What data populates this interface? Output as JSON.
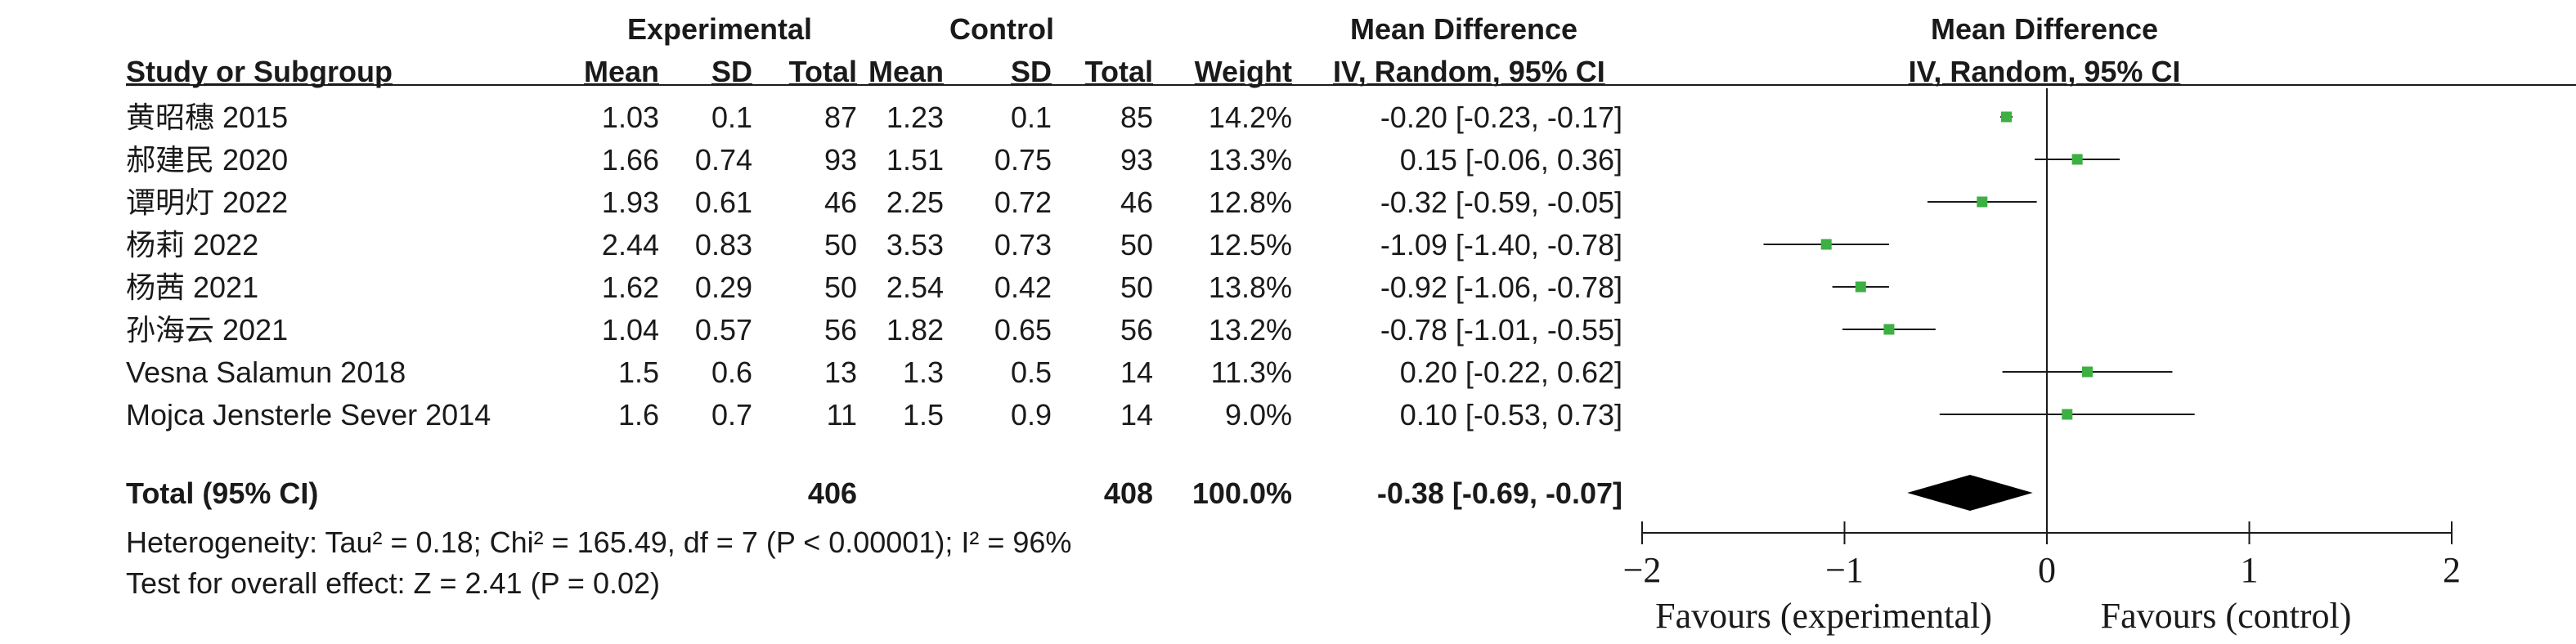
{
  "header": {
    "experimental": "Experimental",
    "control": "Control",
    "md_left": "Mean Difference",
    "md_right": "Mean Difference",
    "study": "Study or Subgroup",
    "mean1": "Mean",
    "sd1": "SD",
    "total1": "Total",
    "mean2": "Mean",
    "sd2": "SD",
    "total2": "Total",
    "weight": "Weight",
    "ci_left": "IV, Random, 95% CI",
    "ci_right": "IV, Random, 95% CI"
  },
  "rows": [
    {
      "study": "黄昭穗 2015",
      "mean1": "1.03",
      "sd1": "0.1",
      "total1": "87",
      "mean2": "1.23",
      "sd2": "0.1",
      "total2": "85",
      "weight": "14.2%",
      "ci": "-0.20 [-0.23, -0.17]"
    },
    {
      "study": "郝建民 2020",
      "mean1": "1.66",
      "sd1": "0.74",
      "total1": "93",
      "mean2": "1.51",
      "sd2": "0.75",
      "total2": "93",
      "weight": "13.3%",
      "ci": "0.15 [-0.06, 0.36]"
    },
    {
      "study": "谭明灯 2022",
      "mean1": "1.93",
      "sd1": "0.61",
      "total1": "46",
      "mean2": "2.25",
      "sd2": "0.72",
      "total2": "46",
      "weight": "12.8%",
      "ci": "-0.32 [-0.59, -0.05]"
    },
    {
      "study": "杨莉 2022",
      "mean1": "2.44",
      "sd1": "0.83",
      "total1": "50",
      "mean2": "3.53",
      "sd2": "0.73",
      "total2": "50",
      "weight": "12.5%",
      "ci": "-1.09 [-1.40, -0.78]"
    },
    {
      "study": "杨茜 2021",
      "mean1": "1.62",
      "sd1": "0.29",
      "total1": "50",
      "mean2": "2.54",
      "sd2": "0.42",
      "total2": "50",
      "weight": "13.8%",
      "ci": "-0.92 [-1.06, -0.78]"
    },
    {
      "study": "孙海云 2021",
      "mean1": "1.04",
      "sd1": "0.57",
      "total1": "56",
      "mean2": "1.82",
      "sd2": "0.65",
      "total2": "56",
      "weight": "13.2%",
      "ci": "-0.78 [-1.01, -0.55]"
    },
    {
      "study": "Vesna Salamun 2018",
      "mean1": "1.5",
      "sd1": "0.6",
      "total1": "13",
      "mean2": "1.3",
      "sd2": "0.5",
      "total2": "14",
      "weight": "11.3%",
      "ci": "0.20 [-0.22, 0.62]"
    },
    {
      "study": "Mojca Jensterle Sever 2014",
      "mean1": "1.6",
      "sd1": "0.7",
      "total1": "11",
      "mean2": "1.5",
      "sd2": "0.9",
      "total2": "14",
      "weight": "9.0%",
      "ci": "0.10 [-0.53, 0.73]"
    }
  ],
  "total": {
    "label": "Total (95% CI)",
    "total1": "406",
    "total2": "408",
    "weight": "100.0%",
    "ci": "-0.38 [-0.69, -0.07]"
  },
  "heterogeneity": "Heterogeneity: Tau² = 0.18; Chi² = 165.49, df = 7 (P < 0.00001); I² = 96%",
  "overall_effect": "Test for overall effect: Z = 2.41 (P = 0.02)",
  "colors": {
    "marker": "#3cb043",
    "line": "#1a1a1a",
    "diamond": "#000000"
  },
  "chart_data": {
    "type": "scatter",
    "subtype": "forest-plot",
    "xlim": [
      -2,
      2
    ],
    "xticks": [
      -2,
      -1,
      0,
      1,
      2
    ],
    "xtick_labels": [
      "−2",
      "−1",
      "0",
      "1",
      "2"
    ],
    "xlabel_left": "Favours (experimental)",
    "xlabel_right": "Favours (control)",
    "series": [
      {
        "points": [
          {
            "study": "黄昭穗 2015",
            "md": -0.2,
            "lo": -0.23,
            "hi": -0.17
          },
          {
            "study": "郝建民 2020",
            "md": 0.15,
            "lo": -0.06,
            "hi": 0.36
          },
          {
            "study": "谭明灯 2022",
            "md": -0.32,
            "lo": -0.59,
            "hi": -0.05
          },
          {
            "study": "杨莉 2022",
            "md": -1.09,
            "lo": -1.4,
            "hi": -0.78
          },
          {
            "study": "杨茜 2021",
            "md": -0.92,
            "lo": -1.06,
            "hi": -0.78
          },
          {
            "study": "孙海云 2021",
            "md": -0.78,
            "lo": -1.01,
            "hi": -0.55
          },
          {
            "study": "Vesna Salamun 2018",
            "md": 0.2,
            "lo": -0.22,
            "hi": 0.62
          },
          {
            "study": "Mojca Jensterle Sever 2014",
            "md": 0.1,
            "lo": -0.53,
            "hi": 0.73
          }
        ]
      }
    ],
    "pooled": {
      "md": -0.38,
      "lo": -0.69,
      "hi": -0.07
    }
  }
}
